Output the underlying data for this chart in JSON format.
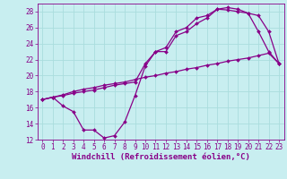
{
  "title": "",
  "xlabel": "Windchill (Refroidissement éolien,°C)",
  "ylabel": "",
  "xlim": [
    -0.5,
    23.5
  ],
  "ylim": [
    12,
    29
  ],
  "bg_color": "#c8eef0",
  "line_color": "#880088",
  "grid_color": "#aadddd",
  "xticks": [
    0,
    1,
    2,
    3,
    4,
    5,
    6,
    7,
    8,
    9,
    10,
    11,
    12,
    13,
    14,
    15,
    16,
    17,
    18,
    19,
    20,
    21,
    22,
    23
  ],
  "yticks": [
    12,
    14,
    16,
    18,
    20,
    22,
    24,
    26,
    28
  ],
  "line1_x": [
    0,
    1,
    2,
    3,
    4,
    5,
    6,
    7,
    8,
    9,
    10,
    11,
    12,
    13,
    14,
    15,
    16,
    17,
    18,
    19,
    20,
    21,
    22,
    23
  ],
  "line1_y": [
    17.0,
    17.3,
    16.2,
    15.5,
    13.2,
    13.2,
    12.2,
    12.5,
    14.2,
    17.5,
    21.2,
    23.0,
    23.5,
    25.5,
    26.0,
    27.2,
    27.5,
    28.3,
    28.2,
    28.0,
    27.8,
    25.5,
    23.0,
    21.5
  ],
  "line2_x": [
    0,
    1,
    2,
    3,
    4,
    5,
    6,
    7,
    8,
    9,
    10,
    11,
    12,
    13,
    14,
    15,
    16,
    17,
    18,
    19,
    20,
    21,
    22,
    23
  ],
  "line2_y": [
    17.0,
    17.3,
    17.6,
    18.0,
    18.3,
    18.5,
    18.8,
    19.0,
    19.2,
    19.5,
    19.8,
    20.0,
    20.3,
    20.5,
    20.8,
    21.0,
    21.3,
    21.5,
    21.8,
    22.0,
    22.2,
    22.5,
    22.8,
    21.5
  ],
  "line3_x": [
    0,
    1,
    2,
    3,
    4,
    5,
    6,
    7,
    8,
    9,
    10,
    11,
    12,
    13,
    14,
    15,
    16,
    17,
    18,
    19,
    20,
    21,
    22,
    23
  ],
  "line3_y": [
    17.0,
    17.3,
    17.5,
    17.8,
    18.0,
    18.2,
    18.5,
    18.8,
    19.0,
    19.2,
    21.5,
    23.0,
    23.0,
    25.0,
    25.5,
    26.5,
    27.2,
    28.3,
    28.5,
    28.3,
    27.8,
    27.5,
    25.5,
    21.5
  ],
  "xlabel_fontsize": 6.5,
  "tick_fontsize": 5.5,
  "marker": "D",
  "markersize": 2.0,
  "linewidth": 0.9
}
